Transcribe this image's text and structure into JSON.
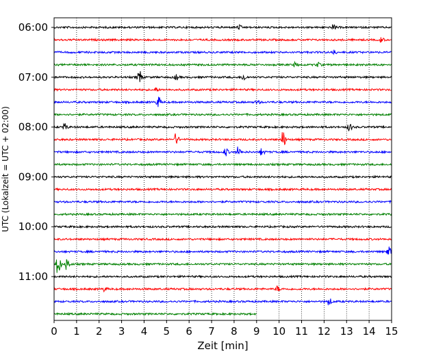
{
  "chart_data": {
    "type": "line",
    "title": "",
    "xlabel": "Zeit  [min]",
    "ylabel": "UTC (Lokalzeit = UTC + 02:00)",
    "xlim": [
      0,
      15
    ],
    "x_ticks": [
      0,
      1,
      2,
      3,
      4,
      5,
      6,
      7,
      8,
      9,
      10,
      11,
      12,
      13,
      14,
      15
    ],
    "y_ticks": [
      "06:00",
      "07:00",
      "08:00",
      "09:00",
      "10:00",
      "11:00"
    ],
    "grid": "vertical dotted",
    "colors": [
      "#000000",
      "#ff0000",
      "#0000ff",
      "#008000"
    ],
    "trace_interval_min": 15,
    "traces": [
      {
        "start": "06:00",
        "color": "#000000",
        "end_min": 15,
        "events": [
          {
            "t": 12.4,
            "amp": 4
          },
          {
            "t": 8.2,
            "amp": 3
          }
        ]
      },
      {
        "start": "06:15",
        "color": "#ff0000",
        "end_min": 15,
        "events": [
          {
            "t": 14.5,
            "amp": 4
          }
        ]
      },
      {
        "start": "06:30",
        "color": "#0000ff",
        "end_min": 15,
        "events": [
          {
            "t": 12.4,
            "amp": 3
          }
        ]
      },
      {
        "start": "06:45",
        "color": "#008000",
        "end_min": 15,
        "events": [
          {
            "t": 10.7,
            "amp": 3
          },
          {
            "t": 11.7,
            "amp": 3
          }
        ]
      },
      {
        "start": "07:00",
        "color": "#000000",
        "end_min": 15,
        "events": [
          {
            "t": 3.75,
            "amp": 12
          },
          {
            "t": 5.4,
            "amp": 4
          },
          {
            "t": 8.4,
            "amp": 5
          }
        ]
      },
      {
        "start": "07:15",
        "color": "#ff0000",
        "end_min": 15,
        "events": [
          {
            "t": 4.5,
            "amp": 3
          }
        ]
      },
      {
        "start": "07:30",
        "color": "#0000ff",
        "end_min": 15,
        "events": [
          {
            "t": 4.6,
            "amp": 9
          },
          {
            "t": 9.0,
            "amp": 3
          }
        ]
      },
      {
        "start": "07:45",
        "color": "#008000",
        "end_min": 15,
        "events": []
      },
      {
        "start": "08:00",
        "color": "#000000",
        "end_min": 15,
        "events": [
          {
            "t": 0.45,
            "amp": 5
          },
          {
            "t": 13.1,
            "amp": 6
          }
        ]
      },
      {
        "start": "08:15",
        "color": "#ff0000",
        "end_min": 15,
        "events": [
          {
            "t": 5.4,
            "amp": 8
          },
          {
            "t": 10.15,
            "amp": 13
          }
        ]
      },
      {
        "start": "08:30",
        "color": "#0000ff",
        "end_min": 15,
        "events": [
          {
            "t": 7.6,
            "amp": 6
          },
          {
            "t": 8.15,
            "amp": 7
          },
          {
            "t": 9.2,
            "amp": 5
          }
        ]
      },
      {
        "start": "08:45",
        "color": "#008000",
        "end_min": 15,
        "events": []
      },
      {
        "start": "09:00",
        "color": "#000000",
        "end_min": 15,
        "events": []
      },
      {
        "start": "09:15",
        "color": "#ff0000",
        "end_min": 15,
        "events": []
      },
      {
        "start": "09:30",
        "color": "#0000ff",
        "end_min": 15,
        "events": []
      },
      {
        "start": "09:45",
        "color": "#008000",
        "end_min": 15,
        "events": []
      },
      {
        "start": "10:00",
        "color": "#000000",
        "end_min": 15,
        "events": []
      },
      {
        "start": "10:15",
        "color": "#ff0000",
        "end_min": 15,
        "events": []
      },
      {
        "start": "10:30",
        "color": "#0000ff",
        "end_min": 15,
        "events": [
          {
            "t": 14.85,
            "amp": 9
          }
        ]
      },
      {
        "start": "10:45",
        "color": "#008000",
        "end_min": 15,
        "events": [
          {
            "t": 0.15,
            "amp": 16
          },
          {
            "t": 0.55,
            "amp": 9
          }
        ]
      },
      {
        "start": "11:00",
        "color": "#000000",
        "end_min": 15,
        "events": []
      },
      {
        "start": "11:15",
        "color": "#ff0000",
        "end_min": 15,
        "events": [
          {
            "t": 2.2,
            "amp": 3
          },
          {
            "t": 9.9,
            "amp": 4
          }
        ]
      },
      {
        "start": "11:30",
        "color": "#0000ff",
        "end_min": 15,
        "events": [
          {
            "t": 12.2,
            "amp": 5
          }
        ]
      },
      {
        "start": "11:45",
        "color": "#008000",
        "end_min": 9,
        "events": []
      }
    ]
  }
}
